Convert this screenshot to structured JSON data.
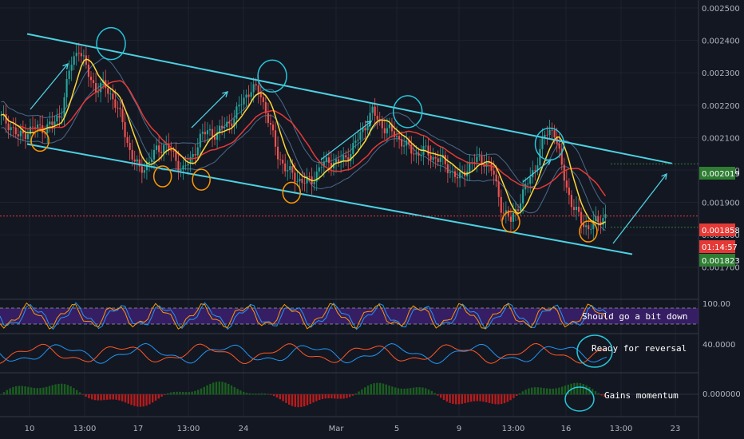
{
  "chart_data": [
    {
      "type": "candlestick",
      "pane": "price",
      "indicators": [
        "bollinger-bands",
        "moving-average-yellow",
        "moving-average-red"
      ],
      "ylim": [
        0.00165,
        0.0025
      ],
      "y_ticks": [
        "0.002500",
        "0.002400",
        "0.002300",
        "0.002200",
        "0.002100",
        "0.002000",
        "0.001900",
        "0.001800",
        "0.001700"
      ],
      "x_ticks": [
        "10",
        "13:00",
        "17",
        "13:00",
        "24",
        "Mar",
        "5",
        "9",
        "13:00",
        "16",
        "13:00",
        "23"
      ],
      "price_tags": [
        {
          "value": "0.002019",
          "color": "#2e7d32"
        },
        {
          "value": "0.001858",
          "color": "#e53935"
        },
        {
          "value": "01:14:57",
          "color": "#e53935"
        },
        {
          "value": "0.001823",
          "color": "#2e7d32"
        }
      ],
      "channel": {
        "upper": [
          [
            0.0,
            0.00242
          ],
          [
            1.0,
            0.00202
          ]
        ],
        "lower": [
          [
            0.0,
            0.00208
          ],
          [
            1.0,
            0.00174
          ]
        ]
      },
      "close_series": [
        0.00216,
        0.00214,
        0.0021,
        0.00212,
        0.00213,
        0.00213,
        0.00214,
        0.00218,
        0.00232,
        0.00238,
        0.0023,
        0.00225,
        0.00226,
        0.00222,
        0.00215,
        0.00205,
        0.002,
        0.00202,
        0.00206,
        0.00208,
        0.00204,
        0.002,
        0.00203,
        0.0021,
        0.00212,
        0.00211,
        0.00214,
        0.00216,
        0.00222,
        0.00225,
        0.00224,
        0.00215,
        0.00205,
        0.002,
        0.00198,
        0.00196,
        0.00197,
        0.00201,
        0.00203,
        0.00202,
        0.00204,
        0.00208,
        0.00213,
        0.00218,
        0.00214,
        0.00212,
        0.0021,
        0.00207,
        0.00205,
        0.00206,
        0.00204,
        0.00203,
        0.002,
        0.00197,
        0.00201,
        0.00203,
        0.00203,
        0.00199,
        0.00188,
        0.00184,
        0.0019,
        0.00196,
        0.00202,
        0.00211,
        0.00213,
        0.002,
        0.0019,
        0.00185,
        0.00182,
        0.00184,
        0.00186
      ],
      "annotations": [
        {
          "kind": "circle",
          "color": "cyan",
          "at": [
            0.13,
            0.00239
          ]
        },
        {
          "kind": "circle",
          "color": "cyan",
          "at": [
            0.38,
            0.00229
          ]
        },
        {
          "kind": "circle",
          "color": "cyan",
          "at": [
            0.59,
            0.00218
          ]
        },
        {
          "kind": "circle",
          "color": "cyan",
          "at": [
            0.81,
            0.00208
          ]
        },
        {
          "kind": "circle",
          "color": "orange",
          "at": [
            0.02,
            0.00209
          ]
        },
        {
          "kind": "circle",
          "color": "orange",
          "at": [
            0.21,
            0.00198
          ]
        },
        {
          "kind": "circle",
          "color": "orange",
          "at": [
            0.27,
            0.00197
          ]
        },
        {
          "kind": "circle",
          "color": "orange",
          "at": [
            0.41,
            0.00193
          ]
        },
        {
          "kind": "circle",
          "color": "orange",
          "at": [
            0.75,
            0.00184
          ]
        },
        {
          "kind": "circle",
          "color": "orange",
          "at": [
            0.87,
            0.00181
          ]
        }
      ]
    },
    {
      "type": "line",
      "pane": "stochastic-rsi",
      "y_tick": "100.00",
      "annotation": "Should go a bit down"
    },
    {
      "type": "line",
      "pane": "oscillator",
      "y_tick": "40.0000",
      "annotation": "Ready for reversal"
    },
    {
      "type": "histogram",
      "pane": "momentum",
      "y_tick": "0.000000",
      "annotation": "Gains momentum"
    }
  ]
}
